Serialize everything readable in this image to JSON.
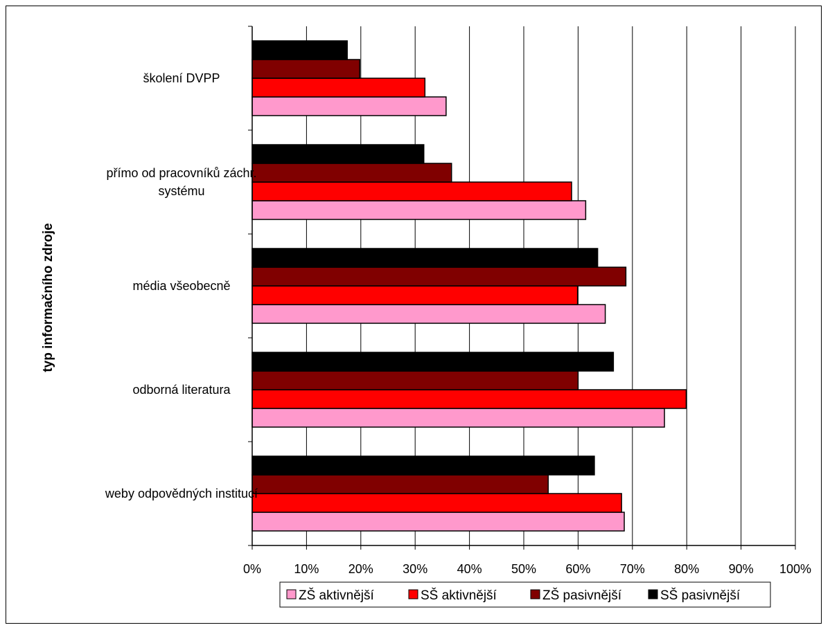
{
  "chart_data": {
    "type": "bar",
    "orientation": "horizontal",
    "title": "",
    "xlabel": "",
    "ylabel": "typ informačního zdroje",
    "xlim": [
      0,
      100
    ],
    "x_ticks": [
      "0%",
      "10%",
      "20%",
      "30%",
      "40%",
      "50%",
      "60%",
      "70%",
      "80%",
      "90%",
      "100%"
    ],
    "grid": "vertical",
    "legend_position": "bottom",
    "categories": [
      [
        "školení DVPP"
      ],
      [
        "přímo od pracovníků záchr.",
        "systému"
      ],
      [
        "média všeobecně"
      ],
      [
        "odborná literatura"
      ],
      [
        "weby odpovědných institucí"
      ]
    ],
    "series": [
      {
        "name": "ZŠ aktivnější",
        "color": "#ff99cc",
        "values": [
          35.7,
          61.4,
          65.0,
          75.9,
          68.5
        ]
      },
      {
        "name": "SŠ aktivnější",
        "color": "#ff0000",
        "values": [
          31.8,
          58.8,
          59.9,
          79.9,
          68.0
        ]
      },
      {
        "name": "ZŠ pasivnější",
        "color": "#800000",
        "values": [
          19.8,
          36.7,
          68.8,
          60.0,
          54.5
        ]
      },
      {
        "name": "SŠ pasivnější",
        "color": "#000000",
        "values": [
          17.5,
          31.6,
          63.6,
          66.5,
          63.0
        ]
      }
    ]
  }
}
